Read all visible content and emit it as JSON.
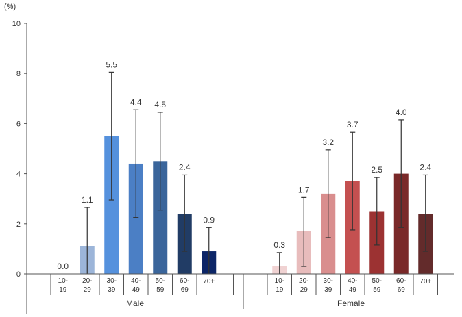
{
  "chart_data": {
    "type": "bar",
    "ylabel": "(%)",
    "ylim": [
      0,
      10
    ],
    "yticks": [
      0,
      2,
      4,
      6,
      8,
      10
    ],
    "grid": false,
    "groups": [
      {
        "name": "Male",
        "categories": [
          [
            "10-",
            "19"
          ],
          [
            "20-",
            "29"
          ],
          [
            "30-",
            "39"
          ],
          [
            "40-",
            "49"
          ],
          [
            "50-",
            "59"
          ],
          [
            "60-",
            "69"
          ],
          [
            "70+"
          ]
        ],
        "values": [
          0.0,
          1.1,
          5.5,
          4.4,
          4.5,
          2.4,
          0.9
        ],
        "value_labels": [
          "0.0",
          "1.1",
          "5.5",
          "4.4",
          "4.5",
          "2.4",
          "0.9"
        ],
        "error_low": [
          0.0,
          0.0,
          2.95,
          2.25,
          2.55,
          0.9,
          0.0
        ],
        "error_high": [
          0.0,
          2.65,
          8.05,
          6.55,
          6.45,
          3.95,
          1.85
        ],
        "colors": [
          "#ffffff",
          "#9cb5d9",
          "#5591dd",
          "#4b7fc5",
          "#3a659b",
          "#213c65",
          "#0c2567"
        ]
      },
      {
        "name": "Female",
        "categories": [
          [
            "10-",
            "19"
          ],
          [
            "20-",
            "29"
          ],
          [
            "30-",
            "39"
          ],
          [
            "40-",
            "49"
          ],
          [
            "50-",
            "59"
          ],
          [
            "60-",
            "69"
          ],
          [
            "70+"
          ]
        ],
        "values": [
          0.3,
          1.7,
          3.2,
          3.7,
          2.5,
          4.0,
          2.4
        ],
        "value_labels": [
          "0.3",
          "1.7",
          "3.2",
          "3.7",
          "2.5",
          "4.0",
          "2.4"
        ],
        "error_low": [
          0.0,
          0.3,
          1.45,
          1.75,
          1.15,
          1.85,
          0.9
        ],
        "error_high": [
          0.85,
          3.05,
          4.95,
          5.65,
          3.85,
          6.15,
          3.95
        ],
        "colors": [
          "#f0d2d2",
          "#e8bcbc",
          "#d98e8e",
          "#c45050",
          "#9c3232",
          "#7a2929",
          "#632b2b"
        ]
      }
    ]
  }
}
